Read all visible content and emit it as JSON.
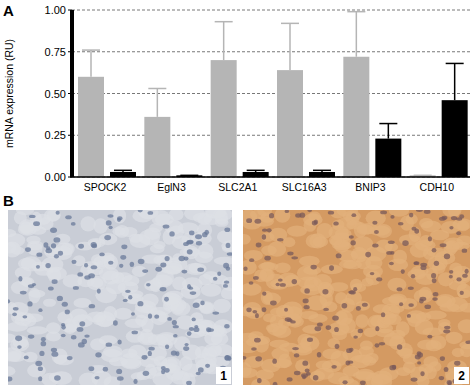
{
  "panel_labels": [
    "A",
    "B"
  ],
  "chart_data": {
    "type": "bar",
    "y_label": "mRNA expression (RU)",
    "categories": [
      "SPOCK2",
      "EglN3",
      "SLC2A1",
      "SLC16A3",
      "BNIP3",
      "CDH10"
    ],
    "series": [
      {
        "color": "#b5b5b5",
        "values": [
          0.6,
          0.36,
          0.7,
          0.64,
          0.72,
          0.01
        ],
        "errors": [
          0.16,
          0.17,
          0.23,
          0.28,
          0.27,
          0.0
        ]
      },
      {
        "color": "#000000",
        "values": [
          0.03,
          0.01,
          0.03,
          0.03,
          0.23,
          0.46
        ],
        "errors": [
          0.01,
          0.0,
          0.01,
          0.01,
          0.09,
          0.22
        ]
      }
    ],
    "ylim": [
      0,
      1
    ],
    "yticks": [
      {
        "value": 0,
        "label": "0.00"
      },
      {
        "value": 0.25,
        "label": "0.25"
      },
      {
        "value": 0.5,
        "label": "0.50"
      },
      {
        "value": 0.75,
        "label": "0.75"
      },
      {
        "value": 1,
        "label": "1.00"
      }
    ],
    "grid": true
  },
  "images": [
    {
      "label": "1"
    },
    {
      "label": "2"
    }
  ]
}
